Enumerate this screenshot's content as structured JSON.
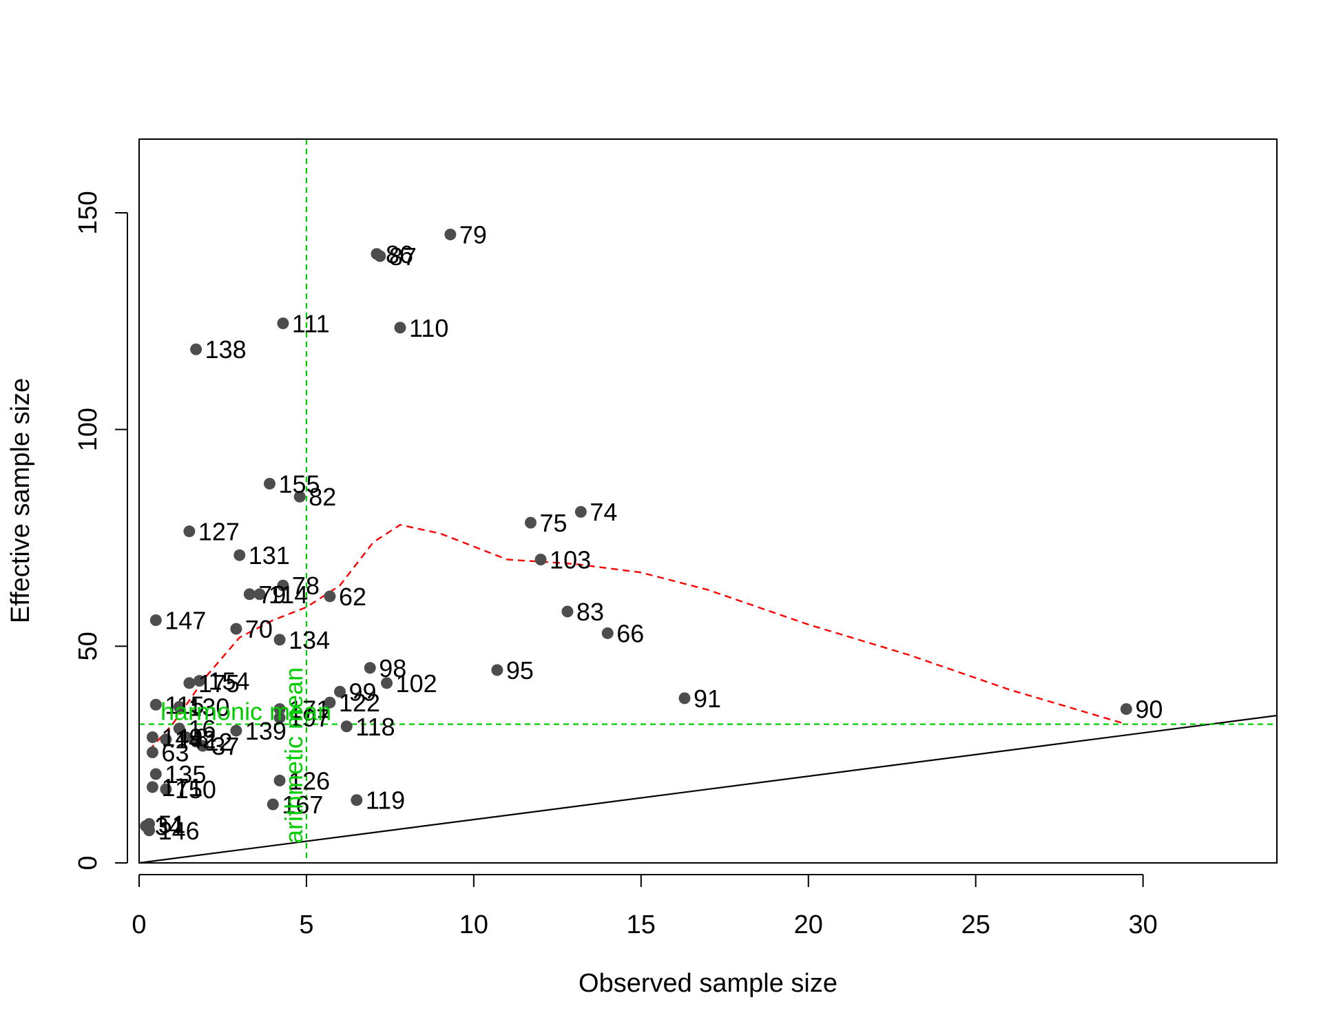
{
  "chart_data": {
    "type": "scatter",
    "title": "",
    "xlabel": "Observed sample size",
    "ylabel": "Effective sample size",
    "xlim": [
      0,
      34
    ],
    "ylim": [
      0,
      167
    ],
    "xticks": [
      0,
      5,
      10,
      15,
      20,
      25,
      30
    ],
    "yticks": [
      0,
      50,
      100,
      150
    ],
    "grid": false,
    "point_color": "#4d4d4d",
    "points": [
      {
        "x": 9.3,
        "y": 145,
        "label": "79"
      },
      {
        "x": 7.1,
        "y": 140.5,
        "label": "86"
      },
      {
        "x": 7.2,
        "y": 140,
        "label": "87"
      },
      {
        "x": 4.3,
        "y": 124.5,
        "label": "111"
      },
      {
        "x": 7.8,
        "y": 123.5,
        "label": "110"
      },
      {
        "x": 1.7,
        "y": 118.5,
        "label": "138"
      },
      {
        "x": 3.9,
        "y": 87.5,
        "label": "155"
      },
      {
        "x": 4.8,
        "y": 84.5,
        "label": "82"
      },
      {
        "x": 13.2,
        "y": 81,
        "label": "74"
      },
      {
        "x": 11.7,
        "y": 78.5,
        "label": "75"
      },
      {
        "x": 1.5,
        "y": 76.5,
        "label": "127"
      },
      {
        "x": 3.0,
        "y": 71,
        "label": "131"
      },
      {
        "x": 12.0,
        "y": 70,
        "label": "103"
      },
      {
        "x": 4.3,
        "y": 64,
        "label": "78"
      },
      {
        "x": 3.3,
        "y": 62,
        "label": "79"
      },
      {
        "x": 3.6,
        "y": 62,
        "label": "114"
      },
      {
        "x": 5.7,
        "y": 61.5,
        "label": "62"
      },
      {
        "x": 12.8,
        "y": 58,
        "label": "83"
      },
      {
        "x": 0.5,
        "y": 56,
        "label": "147"
      },
      {
        "x": 2.9,
        "y": 54,
        "label": "70"
      },
      {
        "x": 14.0,
        "y": 53,
        "label": "66"
      },
      {
        "x": 4.2,
        "y": 51.5,
        "label": "134"
      },
      {
        "x": 6.9,
        "y": 45,
        "label": "98"
      },
      {
        "x": 10.7,
        "y": 44.5,
        "label": "95"
      },
      {
        "x": 7.4,
        "y": 41.5,
        "label": "102"
      },
      {
        "x": 1.5,
        "y": 41.5,
        "label": "175"
      },
      {
        "x": 1.8,
        "y": 42,
        "label": "154"
      },
      {
        "x": 6.0,
        "y": 39.5,
        "label": "99"
      },
      {
        "x": 16.3,
        "y": 38,
        "label": "91"
      },
      {
        "x": 5.7,
        "y": 37,
        "label": "122"
      },
      {
        "x": 0.5,
        "y": 36.5,
        "label": "115"
      },
      {
        "x": 1.2,
        "y": 36,
        "label": "130"
      },
      {
        "x": 4.2,
        "y": 35.5,
        "label": "171"
      },
      {
        "x": 29.5,
        "y": 35.5,
        "label": "90"
      },
      {
        "x": 4.2,
        "y": 33.5,
        "label": "197"
      },
      {
        "x": 6.2,
        "y": 31.5,
        "label": "118"
      },
      {
        "x": 1.2,
        "y": 31,
        "label": "16"
      },
      {
        "x": 2.9,
        "y": 30.5,
        "label": "139"
      },
      {
        "x": 0.4,
        "y": 29,
        "label": "149"
      },
      {
        "x": 0.8,
        "y": 28.5,
        "label": "142"
      },
      {
        "x": 1.4,
        "y": 29,
        "label": "8"
      },
      {
        "x": 1.7,
        "y": 28,
        "label": "12"
      },
      {
        "x": 1.9,
        "y": 27,
        "label": "37"
      },
      {
        "x": 0.4,
        "y": 25.5,
        "label": "63"
      },
      {
        "x": 0.5,
        "y": 20.5,
        "label": "135"
      },
      {
        "x": 0.4,
        "y": 17.5,
        "label": "171"
      },
      {
        "x": 0.8,
        "y": 17,
        "label": "150"
      },
      {
        "x": 4.2,
        "y": 19,
        "label": "126"
      },
      {
        "x": 4.0,
        "y": 13.5,
        "label": "167"
      },
      {
        "x": 6.5,
        "y": 14.5,
        "label": "119"
      },
      {
        "x": 0.3,
        "y": 9,
        "label": "51"
      },
      {
        "x": 0.2,
        "y": 8.5,
        "label": "34"
      },
      {
        "x": 0.3,
        "y": 7.5,
        "label": "146"
      }
    ],
    "reference_lines": [
      {
        "type": "identity",
        "slope": 1,
        "intercept": 0,
        "color": "#000000",
        "style": "solid"
      },
      {
        "type": "vertical",
        "x": 5,
        "label": "arithmetic mean",
        "color": "#00cc00",
        "style": "dashed"
      },
      {
        "type": "horizontal",
        "y": 32,
        "label": "harmonic mean",
        "color": "#00cc00",
        "style": "dashed"
      }
    ],
    "smooth_curve": {
      "color": "#ff0000",
      "style": "dashed",
      "x": [
        0.3,
        1,
        2,
        3,
        4,
        5,
        6,
        7,
        7.8,
        9,
        11,
        13,
        15,
        17,
        20,
        23,
        26,
        29.5
      ],
      "y": [
        26,
        32,
        43,
        52,
        56,
        59,
        64,
        74,
        78,
        76,
        70,
        69,
        67,
        63,
        55,
        48,
        40,
        32
      ]
    }
  }
}
